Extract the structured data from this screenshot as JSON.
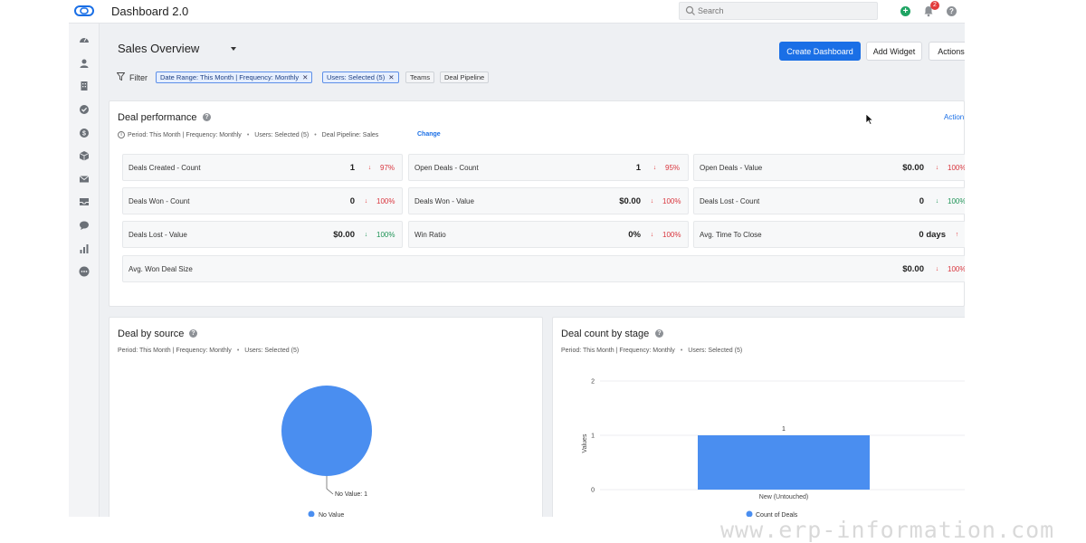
{
  "app": {
    "title": "Dashboard 2.0"
  },
  "search": {
    "placeholder": "Search"
  },
  "notifications": {
    "count": "2"
  },
  "sidebar": {
    "icons": [
      "dashboard-icon",
      "contacts-icon",
      "companies-icon",
      "tasks-icon",
      "deals-icon",
      "products-icon",
      "email-icon",
      "inbox-icon",
      "chat-icon",
      "reports-icon",
      "more-icon"
    ]
  },
  "header": {
    "title": "Sales Overview",
    "create_dashboard_label": "Create Dashboard",
    "add_widget_label": "Add Widget",
    "actions_label": "Actions",
    "filter_label": "Filter",
    "filters": [
      {
        "label": "Date Range: This Month | Frequency: Monthly",
        "removable": true
      },
      {
        "label": "Users: Selected (5)",
        "removable": true
      },
      {
        "label": "Teams",
        "removable": false
      },
      {
        "label": "Deal Pipeline",
        "removable": false
      }
    ]
  },
  "deal_performance": {
    "title": "Deal performance",
    "action_label": "Action",
    "meta": {
      "period": "Period: This Month | Frequency: Monthly",
      "users": "Users: Selected (5)",
      "pipeline": "Deal Pipeline: Sales",
      "change": "Change"
    },
    "metrics": [
      {
        "label": "Deals Created - Count",
        "value": "1",
        "trend": "down",
        "pct": "97%",
        "color": "red"
      },
      {
        "label": "Open Deals - Count",
        "value": "1",
        "trend": "down",
        "pct": "95%",
        "color": "red"
      },
      {
        "label": "Open Deals - Value",
        "value": "$0.00",
        "trend": "down",
        "pct": "100%",
        "color": "red"
      },
      {
        "label": "Deals Won - Count",
        "value": "0",
        "trend": "down",
        "pct": "100%",
        "color": "red"
      },
      {
        "label": "Deals Won - Value",
        "value": "$0.00",
        "trend": "down",
        "pct": "100%",
        "color": "red"
      },
      {
        "label": "Deals Lost - Count",
        "value": "0",
        "trend": "down",
        "pct": "100%",
        "color": "green"
      },
      {
        "label": "Deals Lost - Value",
        "value": "$0.00",
        "trend": "down",
        "pct": "100%",
        "color": "green"
      },
      {
        "label": "Win Ratio",
        "value": "0%",
        "trend": "down",
        "pct": "100%",
        "color": "red"
      },
      {
        "label": "Avg. Time To Close",
        "value": "0 days",
        "trend": "up",
        "pct": "",
        "color": "red"
      },
      {
        "label": "Avg. Won Deal Size",
        "value": "$0.00",
        "trend": "down",
        "pct": "100%",
        "color": "red"
      }
    ]
  },
  "deal_by_source": {
    "title": "Deal by source",
    "meta": {
      "period": "Period: This Month | Frequency: Monthly",
      "users": "Users: Selected (5)"
    }
  },
  "deal_count_by_stage": {
    "title": "Deal count by stage",
    "meta": {
      "period": "Period: This Month | Frequency: Monthly",
      "users": "Users: Selected (5)"
    }
  },
  "chart_data": [
    {
      "type": "pie",
      "title": "Deal by source",
      "categories": [
        "No Value"
      ],
      "values": [
        1
      ],
      "annotations": [
        "No Value: 1"
      ],
      "legend": [
        "No Value"
      ],
      "legend_position": "bottom",
      "colors": [
        "#4a8ef0"
      ]
    },
    {
      "type": "bar",
      "title": "Deal count by stage",
      "categories": [
        "New (Untouched)"
      ],
      "series": [
        {
          "name": "Count of Deals",
          "values": [
            1
          ]
        }
      ],
      "ylabel": "Values",
      "xlabel": "",
      "ylim": [
        0,
        2
      ],
      "yticks": [
        0,
        1,
        2
      ],
      "data_labels": [
        "1"
      ],
      "legend_position": "bottom",
      "colors": [
        "#4a8ef0"
      ]
    }
  ],
  "watermark": {
    "text": "www.erp-information.com"
  },
  "colors": {
    "accent": "#1a6fe6",
    "chart": "#4a8ef0",
    "negative": "#d9363e",
    "positive": "#1f9457"
  }
}
